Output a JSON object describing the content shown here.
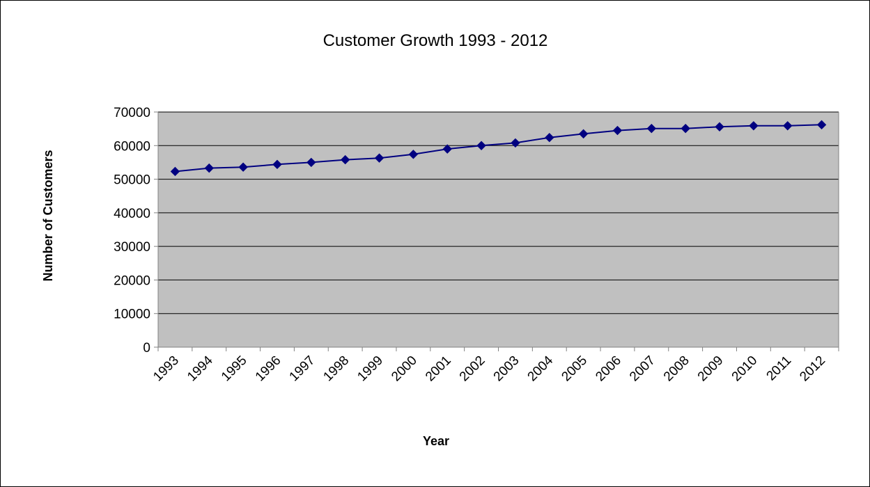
{
  "chart_data": {
    "type": "line",
    "title": "Customer Growth 1993 - 2012",
    "xlabel": "Year",
    "ylabel": "Number of Customers",
    "categories": [
      "1993",
      "1994",
      "1995",
      "1996",
      "1997",
      "1998",
      "1999",
      "2000",
      "2001",
      "2002",
      "2003",
      "2004",
      "2005",
      "2006",
      "2007",
      "2008",
      "2009",
      "2010",
      "2011",
      "2012"
    ],
    "series": [
      {
        "values": [
          52300,
          53300,
          53600,
          54400,
          55000,
          55800,
          56300,
          57400,
          59000,
          60000,
          60800,
          62400,
          63500,
          64500,
          65100,
          65100,
          65600,
          65900,
          65900,
          66200
        ]
      }
    ],
    "ylim": [
      0,
      70000
    ],
    "yticks": [
      0,
      10000,
      20000,
      30000,
      40000,
      50000,
      60000,
      70000
    ],
    "grid": "horizontal",
    "legend": "none",
    "colors": {
      "plot_background": "#c0c0c0",
      "line": "#000080",
      "marker": "#000080",
      "gridline": "#000000"
    }
  }
}
